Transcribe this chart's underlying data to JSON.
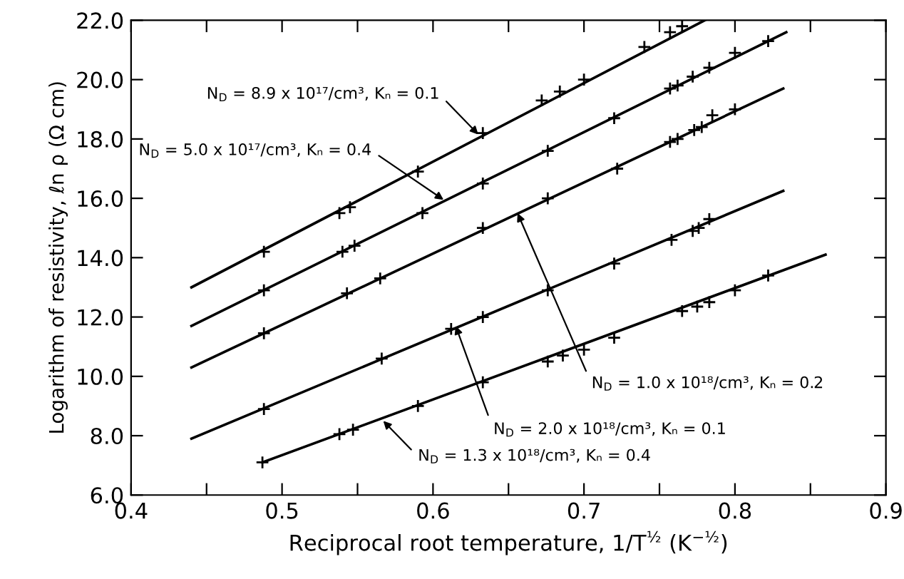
{
  "chart_data": {
    "type": "line",
    "xlabel": "Reciprocal root temperature, 1/T$^{½}$ (K$^{−½}$)",
    "ylabel": "Logarithm of resistivity, ℓn ρ (Ω cm)",
    "xlim": [
      0.4,
      0.9
    ],
    "ylim": [
      6.0,
      22.0
    ],
    "xticks": [
      0.4,
      {
        "value": 0.45,
        "label": null
      },
      0.5,
      {
        "value": 0.55,
        "label": null
      },
      0.6,
      {
        "value": 0.65,
        "label": null
      },
      0.7,
      {
        "value": 0.75,
        "label": null
      },
      0.8,
      {
        "value": 0.85,
        "label": null
      },
      0.9
    ],
    "yticks": [
      {
        "value": 6,
        "label": "6.0"
      },
      {
        "value": 8,
        "label": "8.0"
      },
      {
        "value": 10,
        "label": "10.0"
      },
      {
        "value": 12,
        "label": "12.0"
      },
      {
        "value": 14,
        "label": "14.0"
      },
      {
        "value": 16,
        "label": "16.0"
      },
      {
        "value": 18,
        "label": "18.0"
      },
      {
        "value": 20,
        "label": "20.0"
      },
      {
        "value": 22,
        "label": "22.0"
      }
    ],
    "grid": false,
    "line_style": "solid",
    "series": [
      {
        "color": "#000000",
        "x": [
          0.44,
          0.78
        ],
        "values": [
          13.0,
          22.0
        ]
      },
      {
        "color": "#000000",
        "x": [
          0.44,
          0.834
        ],
        "values": [
          11.7,
          21.6
        ]
      },
      {
        "color": "#000000",
        "x": [
          0.44,
          0.832
        ],
        "values": [
          10.3,
          19.7
        ]
      },
      {
        "color": "#000000",
        "x": [
          0.44,
          0.832
        ],
        "values": [
          7.9,
          16.25
        ]
      },
      {
        "color": "#000000",
        "x": [
          0.487,
          0.86
        ],
        "values": [
          7.1,
          14.1
        ]
      },
      {
        "type": "scatter",
        "marker": "cross",
        "color": "#000000",
        "x": [
          0.488,
          0.538,
          0.545,
          0.59,
          0.633,
          0.672,
          0.684,
          0.7,
          0.74,
          0.757,
          0.765
        ],
        "values": [
          14.2,
          15.5,
          15.7,
          16.9,
          18.2,
          19.3,
          19.6,
          20.0,
          21.1,
          21.6,
          21.8
        ]
      },
      {
        "type": "scatter",
        "marker": "cross",
        "color": "#000000",
        "x": [
          0.488,
          0.54,
          0.548,
          0.593,
          0.633,
          0.676,
          0.72,
          0.757,
          0.762,
          0.772,
          0.783,
          0.8,
          0.822
        ],
        "values": [
          12.9,
          14.2,
          14.4,
          15.5,
          16.5,
          17.6,
          18.7,
          19.7,
          19.8,
          20.1,
          20.4,
          20.9,
          21.3
        ]
      },
      {
        "type": "scatter",
        "marker": "cross",
        "color": "#000000",
        "x": [
          0.488,
          0.543,
          0.565,
          0.633,
          0.676,
          0.722,
          0.757,
          0.762,
          0.773,
          0.778,
          0.785,
          0.8
        ],
        "values": [
          11.45,
          12.8,
          13.3,
          15.0,
          16.0,
          17.0,
          17.9,
          18.0,
          18.3,
          18.4,
          18.8,
          19.0
        ]
      },
      {
        "type": "scatter",
        "marker": "cross",
        "color": "#000000",
        "x": [
          0.488,
          0.566,
          0.612,
          0.633,
          0.676,
          0.72,
          0.758,
          0.772,
          0.776,
          0.783
        ],
        "values": [
          8.9,
          10.6,
          11.6,
          12.0,
          12.9,
          13.8,
          14.6,
          14.9,
          15.0,
          15.3
        ]
      },
      {
        "type": "scatter",
        "marker": "cross",
        "color": "#000000",
        "x": [
          0.487,
          0.538,
          0.547,
          0.59,
          0.633,
          0.676,
          0.686,
          0.7,
          0.72,
          0.765,
          0.775,
          0.783,
          0.8,
          0.822
        ],
        "values": [
          7.1,
          8.05,
          8.2,
          9.0,
          9.8,
          10.5,
          10.7,
          10.9,
          11.3,
          12.2,
          12.35,
          12.5,
          12.9,
          13.4
        ]
      }
    ],
    "annotations": [
      {
        "text": "N$_{D}$ = 8.9 x 10¹⁷/cm³, Kₙ = 0.1",
        "x": 0.63,
        "y": 18.15
      },
      {
        "text": "N$_{D}$ = 5.0 x 10¹⁷/cm³, Kₙ = 0.4",
        "x": 0.607,
        "y": 15.95
      },
      {
        "text": "N$_{D}$ = 1.0 x 10¹⁸/cm³, Kₙ = 0.2",
        "x": 0.656,
        "y": 15.5
      },
      {
        "text": "N$_{D}$ = 2.0 x 10¹⁸/cm³, Kₙ = 0.1",
        "x": 0.615,
        "y": 11.7
      },
      {
        "text": "N$_{D}$ = 1.3 x 10¹⁸/cm³, Kₙ = 0.4",
        "x": 0.567,
        "y": 8.5
      }
    ]
  }
}
